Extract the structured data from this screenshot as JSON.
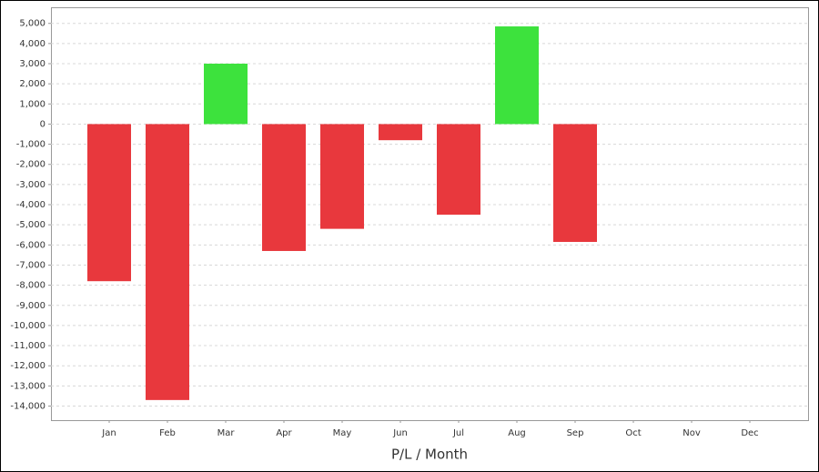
{
  "chart_data": {
    "type": "bar",
    "x_label": "P/L / Month",
    "categories": [
      "Jan",
      "Feb",
      "Mar",
      "Apr",
      "May",
      "Jun",
      "Jul",
      "Aug",
      "Sep",
      "Oct",
      "Nov",
      "Dec"
    ],
    "values": [
      -7800,
      -13700,
      3000,
      -6300,
      -5200,
      -800,
      -4500,
      4850,
      -5850,
      null,
      null,
      null
    ],
    "positive_color": "#3de23d",
    "negative_color": "#e8383d",
    "ylim": [
      -14700,
      5800
    ],
    "yticks": [
      {
        "value": 5000,
        "label": "5,000"
      },
      {
        "value": 4000,
        "label": "4,000"
      },
      {
        "value": 3000,
        "label": "3,000"
      },
      {
        "value": 2000,
        "label": "2,000"
      },
      {
        "value": 1000,
        "label": "1,000"
      },
      0,
      {
        "value": -1000,
        "label": "-1,000"
      },
      {
        "value": -2000,
        "label": "-2,000"
      },
      {
        "value": -3000,
        "label": "-3,000"
      },
      {
        "value": -4000,
        "label": "-4,000"
      },
      {
        "value": -5000,
        "label": "-5,000"
      },
      {
        "value": -6000,
        "label": "-6,000"
      },
      {
        "value": -7000,
        "label": "-7,000"
      },
      {
        "value": -8000,
        "label": "-8,000"
      },
      {
        "value": -9000,
        "label": "-9,000"
      },
      {
        "value": -10000,
        "label": "-10,000"
      },
      {
        "value": -11000,
        "label": "-11,000"
      },
      {
        "value": -12000,
        "label": "-12,000"
      },
      {
        "value": -13000,
        "label": "-13,000"
      },
      {
        "value": -14000,
        "label": "-14,000"
      }
    ],
    "grid": true
  }
}
